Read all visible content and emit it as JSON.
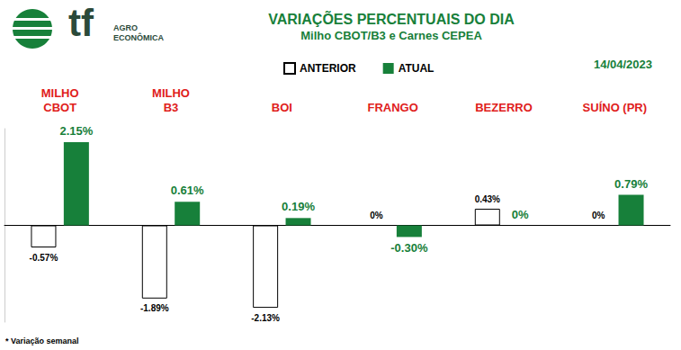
{
  "chart_data": {
    "type": "bar",
    "title": "VARIAÇÕES PERCENTUAIS DO DIA",
    "subtitle": "Milho CBOT/B3 e Carnes CEPEA",
    "annotations": [
      "tf",
      "AGRO",
      "ECONÔMICA",
      "14/04/2023",
      "* Variação semanal"
    ],
    "categories": [
      "MILHO\nCBOT",
      "MILHO\nB3",
      "BOI",
      "FRANGO",
      "BEZERRO",
      "SUÍNO (PR)"
    ],
    "series": [
      {
        "name": "ANTERIOR",
        "color": "#ffffff",
        "values": [
          -0.57,
          -1.89,
          -2.13,
          0,
          0.43,
          0
        ],
        "value_labels": [
          "-0.57%",
          "-1.89%",
          "-2.13%",
          "0%",
          "0.43%",
          "0%"
        ]
      },
      {
        "name": "ATUAL",
        "color": "#17803a",
        "values": [
          2.15,
          0.61,
          0.19,
          -0.3,
          0,
          0.79
        ],
        "value_labels": [
          "2.15%",
          "0.61%",
          "0.19%",
          "-0.30%",
          "0%",
          "0.79%"
        ]
      }
    ],
    "ylim": [
      -2.5,
      2.5
    ],
    "grid": false,
    "legend": "top",
    "data_labels": true,
    "tick_labels": "x"
  }
}
